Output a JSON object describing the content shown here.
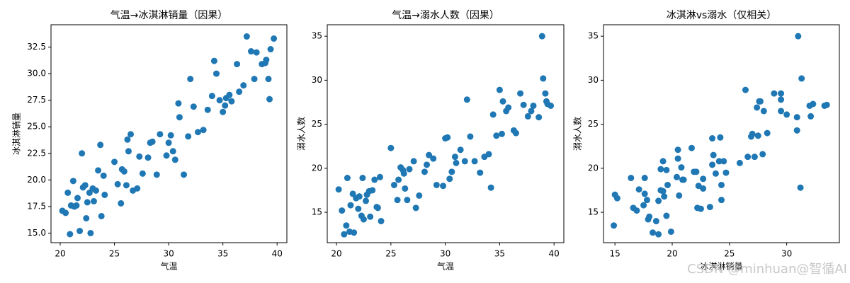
{
  "chart_data": [
    {
      "type": "scatter",
      "title": "气温→冰淇淋销量（因果）",
      "x_label": "气温",
      "y_label": "冰淇淋销量",
      "color": "#1f77b4",
      "xlim": [
        19.15,
        40.9
      ],
      "ylim": [
        14.1,
        34.6
      ],
      "xticks": [
        20,
        25,
        30,
        35,
        40
      ],
      "yticks": [
        {
          "value": 15,
          "label": "15.0"
        },
        17.5,
        {
          "value": 20,
          "label": "20.0"
        },
        22.5,
        {
          "value": 25,
          "label": "25.0"
        },
        27.5,
        {
          "value": 30,
          "label": "30.0"
        },
        32.5
      ],
      "x": [
        20.2,
        20.5,
        20.7,
        20.9,
        21.0,
        21.2,
        21.3,
        21.5,
        21.6,
        21.8,
        22.0,
        22.1,
        22.3,
        22.4,
        22.5,
        22.7,
        22.8,
        23.0,
        23.1,
        23.3,
        23.5,
        23.7,
        23.8,
        24.0,
        24.1,
        25.0,
        25.3,
        25.6,
        25.7,
        25.9,
        26.1,
        26.2,
        26.3,
        26.5,
        26.7,
        27.1,
        27.3,
        27.6,
        28.1,
        28.3,
        28.5,
        28.9,
        29.2,
        29.8,
        30.0,
        30.2,
        30.4,
        30.6,
        30.9,
        31.0,
        31.4,
        31.8,
        32.0,
        32.3,
        32.7,
        33.2,
        33.6,
        34.0,
        34.2,
        34.4,
        34.7,
        35.0,
        35.2,
        35.3,
        35.6,
        35.8,
        36.3,
        36.5,
        36.9,
        37.2,
        37.6,
        37.9,
        38.1,
        38.6,
        38.9,
        39.0,
        39.2,
        39.3,
        39.4,
        39.7
      ],
      "values": [
        17.1,
        16.9,
        18.8,
        14.9,
        17.6,
        19.9,
        17.5,
        17.6,
        18.3,
        15.2,
        22.5,
        19.3,
        19.5,
        16.4,
        17.9,
        18.8,
        15.0,
        19.2,
        18.0,
        19.0,
        20.9,
        23.3,
        16.6,
        20.4,
        18.6,
        21.7,
        19.6,
        17.8,
        21.0,
        20.8,
        19.5,
        23.8,
        22.7,
        24.3,
        19.0,
        19.2,
        22.2,
        20.6,
        22.1,
        23.5,
        23.6,
        20.5,
        24.3,
        22.3,
        23.5,
        24.2,
        22.7,
        21.9,
        27.2,
        25.9,
        20.5,
        24.1,
        29.5,
        26.9,
        24.5,
        24.7,
        26.6,
        27.9,
        31.2,
        30.0,
        27.5,
        26.4,
        27.0,
        27.7,
        28.0,
        27.4,
        30.9,
        28.3,
        28.9,
        33.5,
        32.1,
        29.5,
        32.0,
        30.9,
        31.0,
        31.3,
        29.5,
        27.6,
        32.3,
        33.3
      ]
    },
    {
      "type": "scatter",
      "title": "气温→溺水人数（因果）",
      "x_label": "气温",
      "y_label": "溺水人数",
      "color": "#1f77b4",
      "xlim": [
        19.15,
        40.9
      ],
      "ylim": [
        11.55,
        36.3
      ],
      "xticks": [
        20,
        25,
        30,
        35,
        40
      ],
      "yticks": [
        15,
        20,
        25,
        30,
        35
      ],
      "x": [
        20.2,
        20.5,
        20.7,
        20.9,
        21.0,
        21.2,
        21.3,
        21.5,
        21.6,
        21.8,
        22.0,
        22.1,
        22.3,
        22.4,
        22.5,
        22.7,
        22.8,
        23.0,
        23.1,
        23.3,
        23.5,
        23.7,
        23.8,
        24.0,
        24.1,
        25.0,
        25.3,
        25.6,
        25.7,
        25.9,
        26.1,
        26.2,
        26.3,
        26.5,
        26.7,
        27.1,
        27.3,
        27.6,
        28.1,
        28.3,
        28.5,
        28.9,
        29.2,
        29.8,
        30.0,
        30.2,
        30.4,
        30.6,
        30.9,
        31.0,
        31.4,
        31.8,
        32.0,
        32.3,
        32.7,
        33.2,
        33.6,
        34.0,
        34.2,
        34.4,
        34.7,
        35.0,
        35.2,
        35.3,
        35.6,
        35.8,
        36.3,
        36.5,
        36.9,
        37.2,
        37.6,
        37.9,
        38.1,
        38.6,
        38.9,
        39.0,
        39.2,
        39.3,
        39.4,
        39.7
      ],
      "values": [
        17.6,
        15.2,
        12.5,
        13.5,
        18.9,
        12.8,
        15.8,
        17.1,
        12.7,
        16.6,
        15.4,
        16.8,
        14.6,
        18.9,
        14.2,
        16.3,
        17.0,
        17.4,
        14.5,
        17.5,
        18.7,
        15.6,
        15.5,
        19.0,
        14.0,
        22.3,
        18.1,
        16.4,
        18.7,
        20.1,
        19.8,
        19.4,
        17.7,
        16.4,
        19.9,
        20.8,
        15.5,
        16.9,
        19.6,
        20.4,
        21.5,
        21.1,
        18.1,
        18.0,
        23.4,
        23.5,
        18.8,
        19.6,
        21.3,
        20.6,
        22.1,
        20.8,
        27.8,
        23.6,
        20.8,
        19.5,
        21.3,
        21.6,
        17.8,
        26.1,
        23.7,
        28.9,
        23.9,
        27.6,
        26.5,
        26.9,
        24.3,
        24.0,
        28.5,
        27.2,
        25.9,
        26.5,
        27.1,
        25.8,
        35.0,
        30.2,
        28.5,
        27.6,
        27.3,
        27.1
      ]
    },
    {
      "type": "scatter",
      "title": "冰淇淋vs溺水（仅相关）",
      "x_label": "冰淇淋销量",
      "y_label": "溺水人数",
      "color": "#1f77b4",
      "xlim": [
        14.0,
        34.6
      ],
      "ylim": [
        11.55,
        36.3
      ],
      "xticks": [
        15,
        20,
        25,
        30
      ],
      "yticks": [
        15,
        20,
        25,
        30,
        35
      ],
      "x": [
        17.1,
        16.9,
        18.8,
        14.9,
        17.6,
        19.9,
        17.5,
        17.6,
        18.3,
        15.2,
        22.5,
        19.3,
        19.5,
        16.4,
        17.9,
        18.8,
        15.0,
        19.2,
        18.0,
        19.0,
        20.9,
        23.3,
        16.6,
        20.4,
        18.6,
        21.7,
        19.6,
        17.8,
        21.0,
        20.8,
        19.5,
        23.8,
        22.7,
        24.3,
        19.0,
        19.2,
        22.2,
        20.6,
        22.1,
        23.5,
        23.6,
        20.5,
        24.3,
        22.3,
        23.5,
        24.2,
        22.7,
        21.9,
        27.2,
        25.9,
        20.5,
        24.1,
        29.5,
        26.9,
        24.5,
        24.7,
        26.6,
        27.9,
        31.2,
        30.0,
        27.5,
        26.4,
        27.0,
        27.7,
        28.0,
        27.4,
        30.9,
        28.3,
        28.9,
        33.5,
        32.1,
        29.5,
        32.0,
        30.9,
        31.0,
        31.3,
        29.5,
        27.6,
        32.3,
        33.3
      ],
      "values": [
        17.6,
        15.2,
        12.5,
        13.5,
        18.9,
        12.8,
        15.8,
        17.1,
        12.7,
        16.6,
        15.4,
        16.8,
        14.6,
        18.9,
        14.2,
        16.3,
        17.0,
        17.4,
        14.5,
        17.5,
        18.7,
        15.6,
        15.5,
        19.0,
        14.0,
        22.3,
        18.1,
        16.4,
        18.7,
        20.1,
        19.8,
        19.4,
        17.7,
        16.4,
        19.9,
        20.8,
        15.5,
        16.9,
        19.6,
        20.4,
        21.5,
        21.1,
        18.1,
        18.0,
        23.4,
        23.5,
        18.8,
        19.6,
        21.3,
        20.6,
        22.1,
        20.8,
        27.8,
        23.6,
        20.8,
        19.5,
        21.3,
        21.6,
        17.8,
        26.1,
        23.7,
        28.9,
        23.9,
        27.6,
        26.5,
        26.9,
        24.3,
        24.0,
        28.5,
        27.2,
        25.9,
        26.5,
        27.1,
        25.8,
        35.0,
        30.2,
        28.5,
        27.6,
        27.3,
        27.1
      ]
    }
  ],
  "watermark": "CSDN @minhuan@智循AI"
}
